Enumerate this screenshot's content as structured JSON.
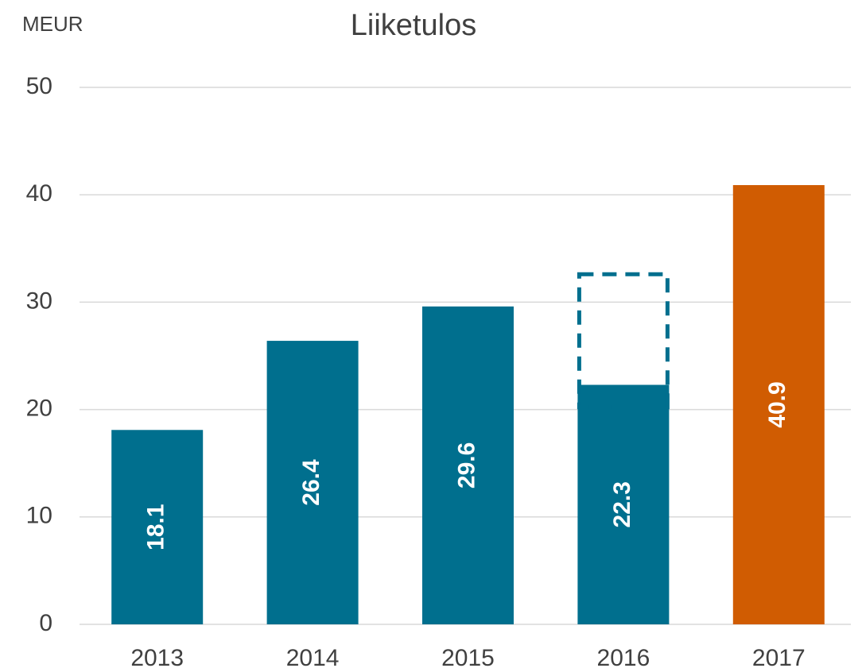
{
  "chart_data": {
    "type": "bar",
    "title": "Liiketulos",
    "y_label": "MEUR",
    "categories": [
      "2013",
      "2014",
      "2015",
      "2016",
      "2017"
    ],
    "values": [
      18.1,
      26.4,
      29.6,
      22.3,
      40.9
    ],
    "colors": [
      "#006f8e",
      "#006f8e",
      "#006f8e",
      "#006f8e",
      "#d05c02"
    ],
    "outline_values": [
      null,
      null,
      null,
      32.6,
      null
    ],
    "outline_color": "#006f8e",
    "ylim": [
      0,
      50
    ],
    "yticks": [
      0,
      10,
      20,
      30,
      40,
      50
    ],
    "grid": true
  }
}
